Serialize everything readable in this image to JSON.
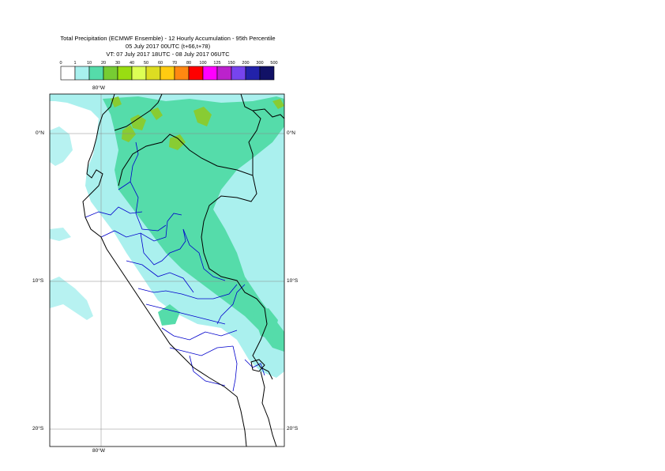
{
  "header": {
    "title_line1": "Total Precipitation (ECMWF Ensemble) - 12 Hourly Accumulation - 95th Percentile",
    "title_line2": "05 July 2017 00UTC (t+66,t+78)",
    "title_line3": "VT: 07 July 2017 18UTC - 08 July 2017 06UTC"
  },
  "legend": {
    "ticks": [
      "0",
      "1",
      "10",
      "20",
      "30",
      "40",
      "50",
      "60",
      "70",
      "80",
      "100",
      "125",
      "150",
      "200",
      "300",
      "500"
    ],
    "colors": [
      "#ffffff",
      "#a8f0ee",
      "#55dcaa",
      "#77cc33",
      "#99dd11",
      "#ddff55",
      "#dddd22",
      "#ffcc11",
      "#ff8811",
      "#ff0000",
      "#ff00ff",
      "#bb22cc",
      "#7744ee",
      "#2222aa",
      "#111166"
    ]
  },
  "axes": {
    "lon_top": "80°W",
    "lon_bottom": "80°W",
    "lat_0": "0°N",
    "lat_10": "10°S",
    "lat_20": "20°S"
  },
  "colors": {
    "light_band": "#aaf0ee",
    "mid_band": "#55dcaa",
    "high_band": "#88cc33",
    "border_country": "#000000",
    "border_region": "#0000cc"
  }
}
